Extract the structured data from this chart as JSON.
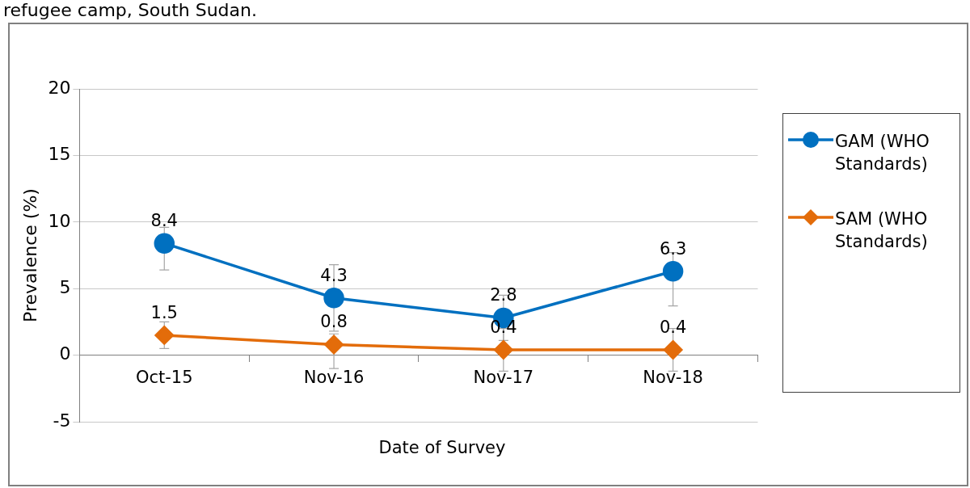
{
  "chart_data": {
    "type": "line",
    "title": "refugee camp, South Sudan.",
    "xlabel": "Date of Survey",
    "ylabel": "Prevalence (%)",
    "categories": [
      "Oct-15",
      "Nov-16",
      "Nov-17",
      "Nov-18"
    ],
    "series": [
      {
        "name": "GAM (WHO Standards)",
        "color": "#0070c0",
        "marker": "circle",
        "values": [
          8.4,
          4.3,
          2.8,
          6.3
        ],
        "errors": [
          [
            6.4,
            9.6
          ],
          [
            1.8,
            6.8
          ],
          [
            1.1,
            4.5
          ],
          [
            3.7,
            7.7
          ]
        ]
      },
      {
        "name": "SAM (WHO Standards)",
        "color": "#e36c0a",
        "marker": "diamond",
        "values": [
          1.5,
          0.8,
          0.4,
          0.4
        ],
        "errors": [
          [
            0.5,
            2.5
          ],
          [
            -1.0,
            1.6
          ],
          [
            -1.2,
            2.0
          ],
          [
            -1.2,
            2.0
          ]
        ]
      }
    ],
    "ylim": [
      -5,
      20
    ],
    "yticks": [
      -5,
      0,
      5,
      10,
      15,
      20
    ],
    "grid": "y",
    "legend": "right",
    "data_labels": true,
    "line_style": "solid"
  }
}
